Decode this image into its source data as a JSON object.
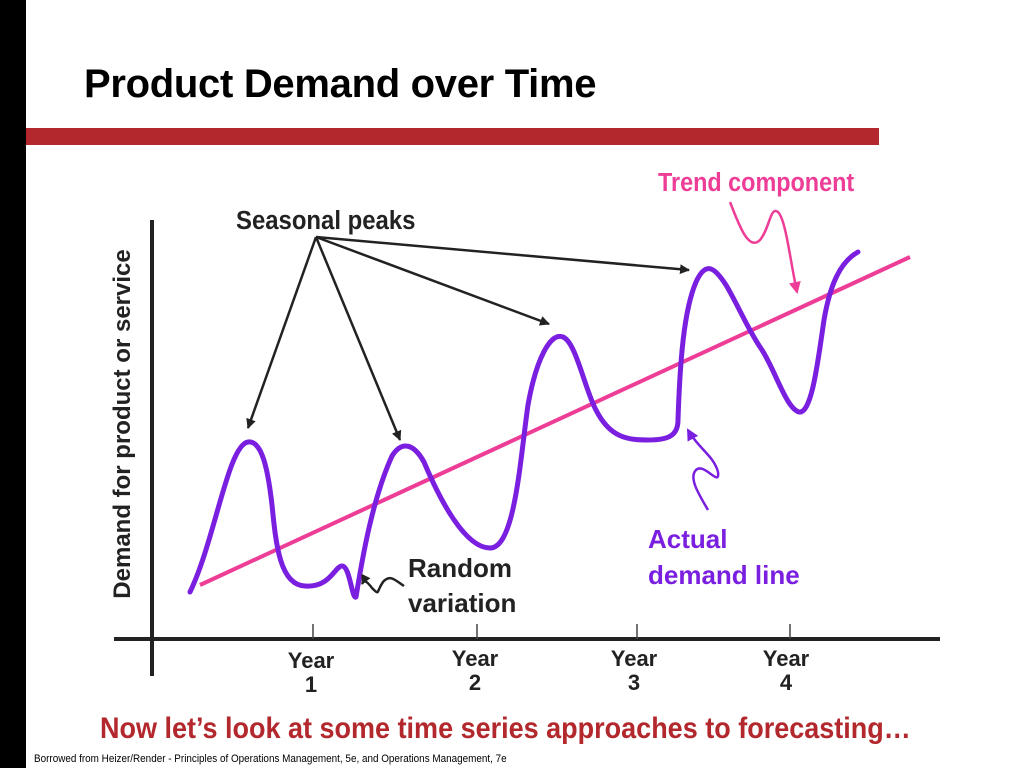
{
  "slide": {
    "title": "Product Demand over Time",
    "bottom_text": "Now let’s look at some time series approaches to forecasting…",
    "credit": "Borrowed from Heizer/Render - Principles of Operations Management, 5e, and Operations Management, 7e"
  },
  "diagram": {
    "y_axis_label": "Demand for product or service",
    "ticks": [
      {
        "line1": "Year",
        "line2": "1"
      },
      {
        "line1": "Year",
        "line2": "2"
      },
      {
        "line1": "Year",
        "line2": "3"
      },
      {
        "line1": "Year",
        "line2": "4"
      }
    ],
    "annotations": {
      "seasonal_peaks": "Seasonal peaks",
      "trend_component": "Trend component",
      "random_line1": "Random",
      "random_line2": "variation",
      "actual_line1": "Actual",
      "actual_line2": "demand line"
    },
    "colors": {
      "demand_line": "#7a1fe0",
      "trend_line": "#ee3d96",
      "rule_red": "#b3282d",
      "arrow": "#222222"
    }
  }
}
